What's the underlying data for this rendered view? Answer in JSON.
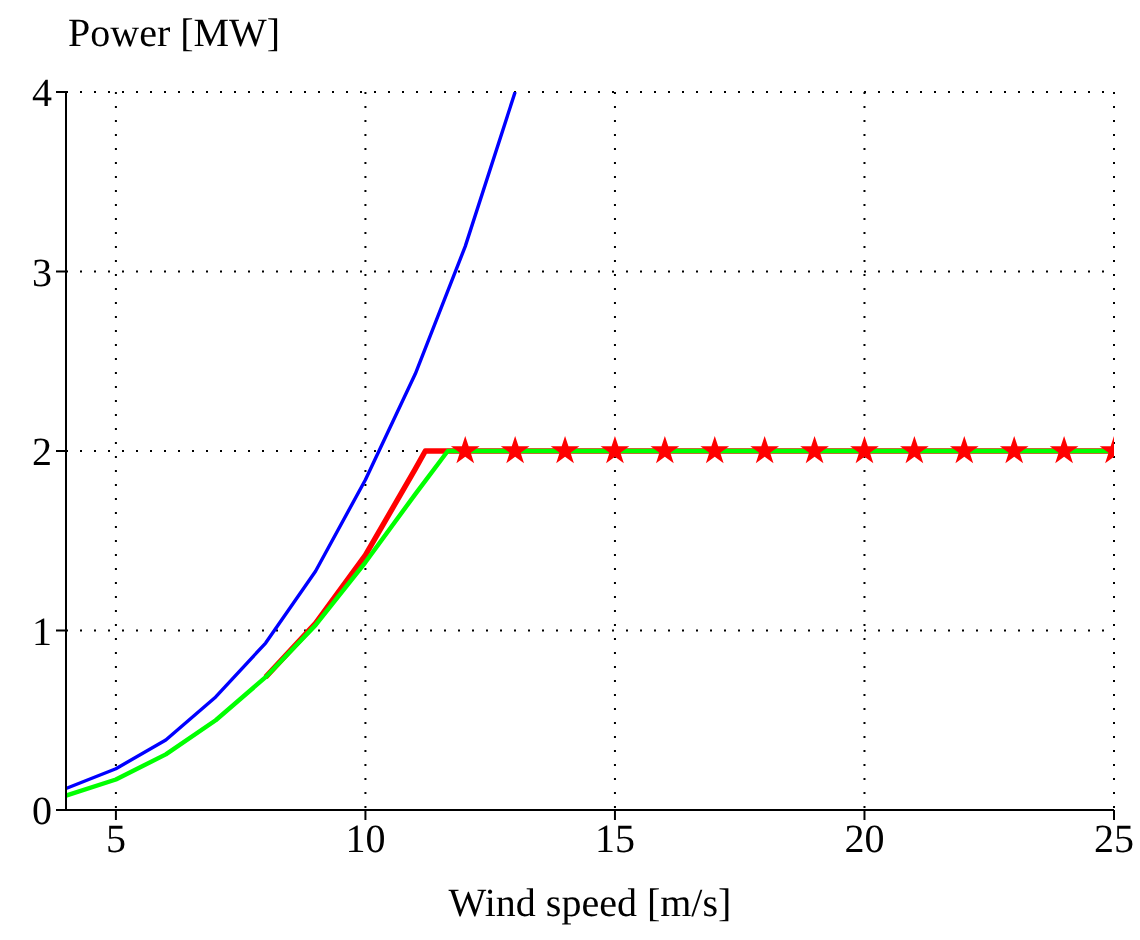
{
  "chart_data": {
    "type": "line",
    "xlabel": "Wind speed [m/s]",
    "ylabel": "Power [MW]",
    "xlim": [
      4,
      25
    ],
    "ylim": [
      0,
      4
    ],
    "xticks": [
      5,
      10,
      15,
      20,
      25
    ],
    "yticks": [
      0,
      1,
      2,
      3,
      4
    ],
    "grid": true,
    "series": [
      {
        "color": "#ff0000",
        "marker": "none",
        "x": [
          8,
          9,
          10,
          11,
          11.2,
          25
        ],
        "values": [
          0.74,
          1.04,
          1.42,
          1.9,
          2,
          2
        ]
      },
      {
        "color": "#00ff00",
        "marker": "none",
        "x": [
          4,
          5,
          6,
          7,
          8,
          9,
          10,
          11,
          11.65,
          25
        ],
        "values": [
          0.08,
          0.17,
          0.31,
          0.5,
          0.74,
          1.03,
          1.38,
          1.76,
          2,
          2
        ]
      },
      {
        "color": "#0000ff",
        "marker": "none",
        "x": [
          4,
          5,
          6,
          7,
          8,
          9,
          10,
          11,
          12,
          13
        ],
        "values": [
          0.12,
          0.23,
          0.39,
          0.63,
          0.93,
          1.33,
          1.84,
          2.43,
          3.14,
          4
        ]
      },
      {
        "type": "scatter",
        "color": "#ff0000",
        "marker": "star",
        "x": [
          12,
          13,
          14,
          15,
          16,
          17,
          18,
          19,
          20,
          21,
          22,
          23,
          24,
          25
        ],
        "values": [
          2,
          2,
          2,
          2,
          2,
          2,
          2,
          2,
          2,
          2,
          2,
          2,
          2,
          2
        ]
      }
    ]
  }
}
